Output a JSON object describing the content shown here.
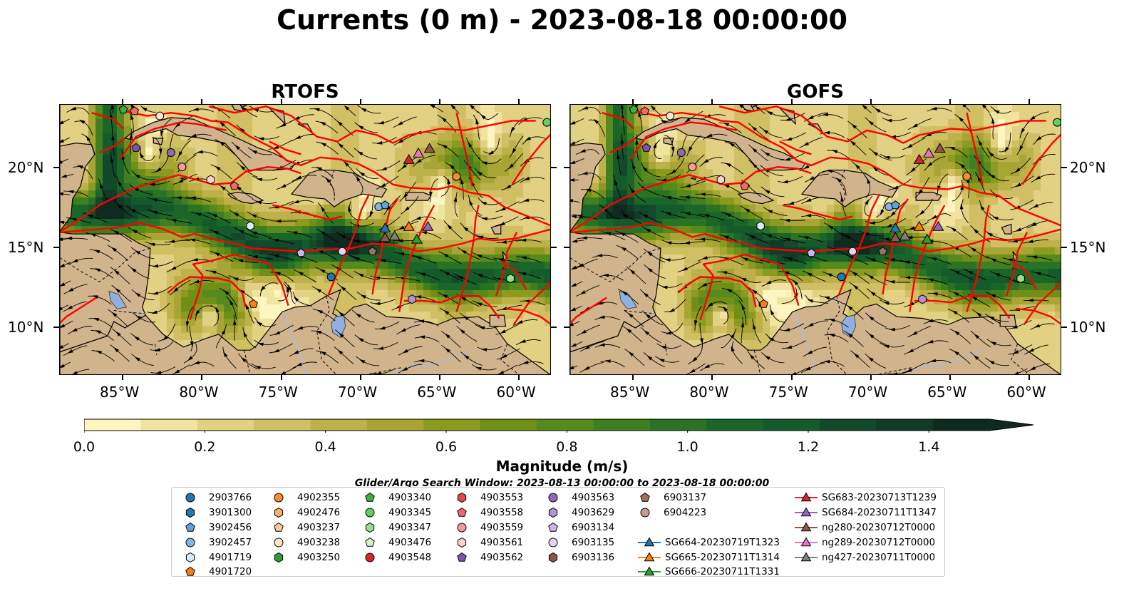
{
  "title": "Currents (0 m) - 2023-08-18 00:00:00",
  "panels": [
    {
      "title": "RTOFS",
      "seed": 7
    },
    {
      "title": "GOFS",
      "seed": 23
    }
  ],
  "map": {
    "lon_range": [
      -89,
      -58
    ],
    "lat_range": [
      7,
      24
    ],
    "lon_ticks": [
      "85°W",
      "80°W",
      "75°W",
      "70°W",
      "65°W",
      "60°W"
    ],
    "lon_tick_values": [
      -85,
      -80,
      -75,
      -70,
      -65,
      -60
    ],
    "lat_ticks": [
      "10°N",
      "15°N",
      "20°N"
    ],
    "lat_tick_values": [
      10,
      15,
      20
    ],
    "colors": {
      "land": "#d2b48c",
      "coast": "#000000",
      "boundary": "#ff0000",
      "lake": "#8fb0e0",
      "river": "#aabbdd"
    }
  },
  "colorbar": {
    "label": "Magnitude (m/s)",
    "range": [
      0.0,
      1.5
    ],
    "extend": "max",
    "ticks": [
      "0.0",
      "0.2",
      "0.4",
      "0.6",
      "0.8",
      "1.0",
      "1.2",
      "1.4"
    ],
    "tick_values": [
      0.0,
      0.2,
      0.4,
      0.6,
      0.8,
      1.0,
      1.2,
      1.4
    ],
    "colors": [
      "#fdf6c0",
      "#f1e3a0",
      "#e2d083",
      "#d0bf63",
      "#bdb24a",
      "#a8a535",
      "#8b9b20",
      "#6f8f17",
      "#568a1c",
      "#3f7f22",
      "#2a7325",
      "#1a6628",
      "#145a2a",
      "#12492a",
      "#113a27",
      "#0f2b1f"
    ]
  },
  "search_window": "Glider/Argo Search Window: 2023-08-13 00:00:00 to 2023-08-18 00:00:00",
  "legend": [
    {
      "label": "2903766",
      "marker": "circle",
      "color": "#1f77b4"
    },
    {
      "label": "3901300",
      "marker": "hexagon",
      "color": "#1f77b4"
    },
    {
      "label": "3902456",
      "marker": "pentagon",
      "color": "#5fa2dd"
    },
    {
      "label": "3902457",
      "marker": "circle",
      "color": "#7fb8e6"
    },
    {
      "label": "4901719",
      "marker": "hexagon",
      "color": "#d6ecfa"
    },
    {
      "label": "4901720",
      "marker": "pentagon",
      "color": "#ff7f0e"
    },
    {
      "label": "4902355",
      "marker": "circle",
      "color": "#f28e2b"
    },
    {
      "label": "4902476",
      "marker": "hexagon",
      "color": "#ffae6b"
    },
    {
      "label": "4903237",
      "marker": "pentagon",
      "color": "#ffc89a"
    },
    {
      "label": "4903238",
      "marker": "circle",
      "color": "#ffe6cc"
    },
    {
      "label": "4903250",
      "marker": "hexagon",
      "color": "#2ca02c"
    },
    {
      "label": "4903340",
      "marker": "pentagon",
      "color": "#3cb043"
    },
    {
      "label": "4903345",
      "marker": "circle",
      "color": "#5fcf5f"
    },
    {
      "label": "4903347",
      "marker": "hexagon",
      "color": "#98df8a"
    },
    {
      "label": "4903476",
      "marker": "pentagon",
      "color": "#d5f5c8"
    },
    {
      "label": "4903548",
      "marker": "circle",
      "color": "#d62728"
    },
    {
      "label": "4903553",
      "marker": "hexagon",
      "color": "#e8474a"
    },
    {
      "label": "4903558",
      "marker": "pentagon",
      "color": "#f06a6a"
    },
    {
      "label": "4903559",
      "marker": "circle",
      "color": "#f59a9a"
    },
    {
      "label": "4903561",
      "marker": "hexagon",
      "color": "#fbd0d0"
    },
    {
      "label": "4903562",
      "marker": "pentagon",
      "color": "#7b55b6"
    },
    {
      "label": "4903563",
      "marker": "circle",
      "color": "#9467bd"
    },
    {
      "label": "4903629",
      "marker": "hexagon",
      "color": "#b592d6"
    },
    {
      "label": "6903134",
      "marker": "pentagon",
      "color": "#cdb5ec"
    },
    {
      "label": "6903135",
      "marker": "circle",
      "color": "#e8d3f7"
    },
    {
      "label": "6903136",
      "marker": "hexagon",
      "color": "#8c564b"
    },
    {
      "label": "6903137",
      "marker": "pentagon",
      "color": "#a0705f"
    },
    {
      "label": "6904223",
      "marker": "circle",
      "color": "#c49c94"
    },
    {
      "label": "SG664-20230719T1323",
      "marker": "triangle-line",
      "color": "#1f77b4"
    },
    {
      "label": "SG665-20230711T1314",
      "marker": "triangle-line",
      "color": "#ff7f0e"
    },
    {
      "label": "SG666-20230711T1331",
      "marker": "triangle-line",
      "color": "#2ca02c"
    },
    {
      "label": "SG683-20230713T1239",
      "marker": "triangle-line",
      "color": "#d62728"
    },
    {
      "label": "SG684-20230711T1347",
      "marker": "triangle-line",
      "color": "#9467bd"
    },
    {
      "label": "ng280-20230712T0000",
      "marker": "triangle-line",
      "color": "#8c564b"
    },
    {
      "label": "ng289-20230712T0000",
      "marker": "triangle-line",
      "color": "#e377c2"
    },
    {
      "label": "ng427-20230711T0000",
      "marker": "triangle-line",
      "color": "#7f7f7f"
    }
  ],
  "platforms": [
    {
      "id": "4903340",
      "lon": -85.0,
      "lat": 23.7
    },
    {
      "id": "4903558",
      "lon": -84.3,
      "lat": 23.6
    },
    {
      "id": "4903238",
      "lon": -82.7,
      "lat": 23.3
    },
    {
      "id": "4903562",
      "lon": -84.2,
      "lat": 21.3
    },
    {
      "id": "4903563",
      "lon": -82.0,
      "lat": 21.0
    },
    {
      "id": "4903559",
      "lon": -81.3,
      "lat": 20.1
    },
    {
      "id": "4903561",
      "lon": -79.5,
      "lat": 19.3
    },
    {
      "id": "4903558",
      "lon": -78.0,
      "lat": 18.9
    },
    {
      "id": "4901719",
      "lon": -77.0,
      "lat": 16.4
    },
    {
      "id": "6903134",
      "lon": -73.8,
      "lat": 14.7
    },
    {
      "id": "6903135",
      "lon": -71.2,
      "lat": 14.8
    },
    {
      "id": "2903766",
      "lon": -71.9,
      "lat": 13.2
    },
    {
      "id": "4901720",
      "lon": -76.8,
      "lat": 11.5
    },
    {
      "id": "6903137",
      "lon": -69.3,
      "lat": 14.8
    },
    {
      "id": "3902457",
      "lon": -68.9,
      "lat": 17.6
    },
    {
      "id": "3902456",
      "lon": -68.5,
      "lat": 17.7
    },
    {
      "id": "4903345",
      "lon": -58.3,
      "lat": 22.9
    },
    {
      "id": "4902355",
      "lon": -64.0,
      "lat": 19.5
    },
    {
      "id": "4903347",
      "lon": -60.6,
      "lat": 13.1
    },
    {
      "id": "4903629",
      "lon": -66.8,
      "lat": 11.8
    }
  ],
  "gliders": [
    {
      "id": "SG683-20230713T1239",
      "lon": -67.0,
      "lat": 20.5
    },
    {
      "id": "ng289-20230712T0000",
      "lon": -66.4,
      "lat": 20.9
    },
    {
      "id": "ng280-20230712T0000",
      "lon": -65.7,
      "lat": 21.2
    },
    {
      "id": "SG664-20230719T1323",
      "lon": -68.5,
      "lat": 16.2
    },
    {
      "id": "SG665-20230711T1314",
      "lon": -67.0,
      "lat": 16.3
    },
    {
      "id": "SG684-20230711T1347",
      "lon": -65.8,
      "lat": 16.3
    },
    {
      "id": "ng427-20230711T0000",
      "lon": -67.9,
      "lat": 15.7
    },
    {
      "id": "ng280-20230712T0000",
      "lon": -68.5,
      "lat": 15.6
    },
    {
      "id": "SG666-20230711T1331",
      "lon": -66.5,
      "lat": 15.5
    }
  ]
}
